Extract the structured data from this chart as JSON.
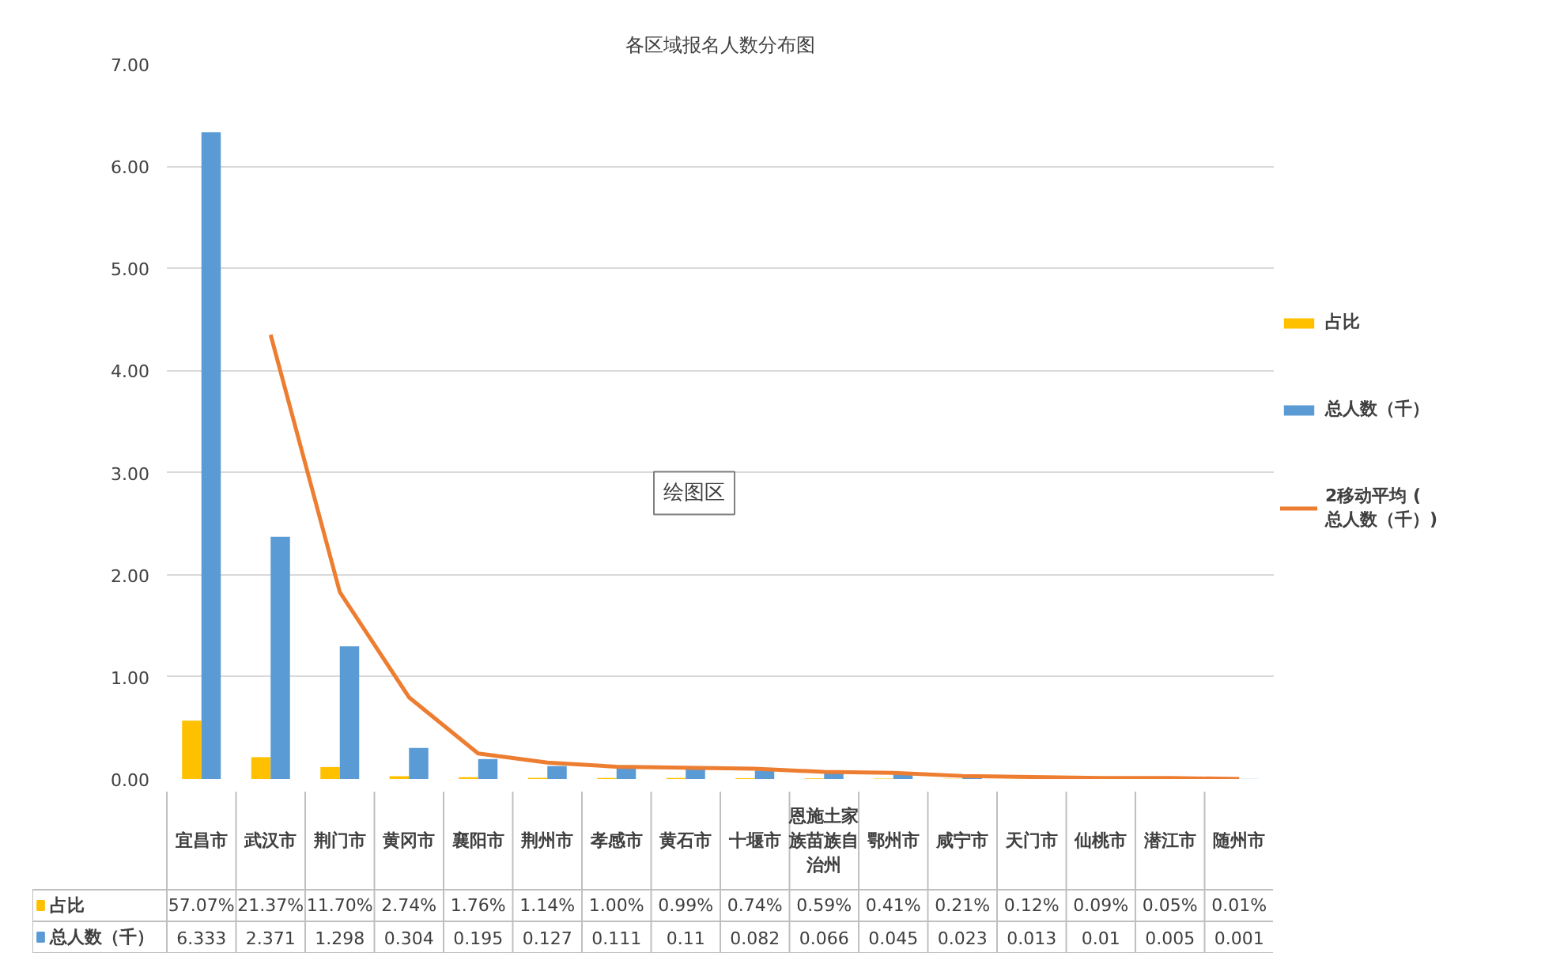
{
  "chart_data": {
    "type": "bar",
    "title": "各区域报名人数分布图",
    "categories": [
      "宜昌市",
      "武汉市",
      "荆门市",
      "黄冈市",
      "襄阳市",
      "荆州市",
      "孝感市",
      "黄石市",
      "十堰市",
      "恩施土家族苗族自治州",
      "鄂州市",
      "咸宁市",
      "天门市",
      "仙桃市",
      "潜江市",
      "随州市"
    ],
    "series": [
      {
        "name": "占比",
        "color": "#ffc000",
        "values": [
          0.5707,
          0.2137,
          0.117,
          0.0274,
          0.0176,
          0.0114,
          0.01,
          0.0099,
          0.0074,
          0.0059,
          0.0041,
          0.0021,
          0.0012,
          0.0009,
          0.0005,
          0.0001
        ],
        "value_labels": [
          "57.07%",
          "21.37%",
          "11.70%",
          "2.74%",
          "1.76%",
          "1.14%",
          "1.00%",
          "0.99%",
          "0.74%",
          "0.59%",
          "0.41%",
          "0.21%",
          "0.12%",
          "0.09%",
          "0.05%",
          "0.01%"
        ]
      },
      {
        "name": "总人数（千）",
        "color": "#5b9bd5",
        "values": [
          6.333,
          2.371,
          1.298,
          0.304,
          0.195,
          0.127,
          0.111,
          0.11,
          0.082,
          0.066,
          0.045,
          0.023,
          0.013,
          0.01,
          0.005,
          0.001
        ],
        "value_labels": [
          "6.333",
          "2.371",
          "1.298",
          "0.304",
          "0.195",
          "0.127",
          "0.111",
          "0.11",
          "0.082",
          "0.066",
          "0.045",
          "0.023",
          "0.013",
          "0.01",
          "0.005",
          "0.001"
        ]
      },
      {
        "name": "2移动平均 (总人数（千）)",
        "type": "line",
        "color": "#ed7d31",
        "values": [
          null,
          4.35,
          1.83,
          0.8,
          0.25,
          0.16,
          0.12,
          0.11,
          0.1,
          0.07,
          0.06,
          0.03,
          0.02,
          0.01,
          0.01,
          0.0
        ]
      }
    ],
    "ylim": [
      0,
      7
    ],
    "yticks": [
      {
        "value": 0,
        "label": "0.00"
      },
      {
        "value": 1,
        "label": "1.00"
      },
      {
        "value": 2,
        "label": "2.00"
      },
      {
        "value": 3,
        "label": "3.00"
      },
      {
        "value": 4,
        "label": "4.00"
      },
      {
        "value": 5,
        "label": "5.00"
      },
      {
        "value": 6,
        "label": "6.00"
      },
      {
        "value": 7,
        "label": "7.00"
      }
    ],
    "grid": "y",
    "legend": "right",
    "line_style": "solid",
    "marker": "none",
    "annotations": [
      "绘图区"
    ]
  }
}
